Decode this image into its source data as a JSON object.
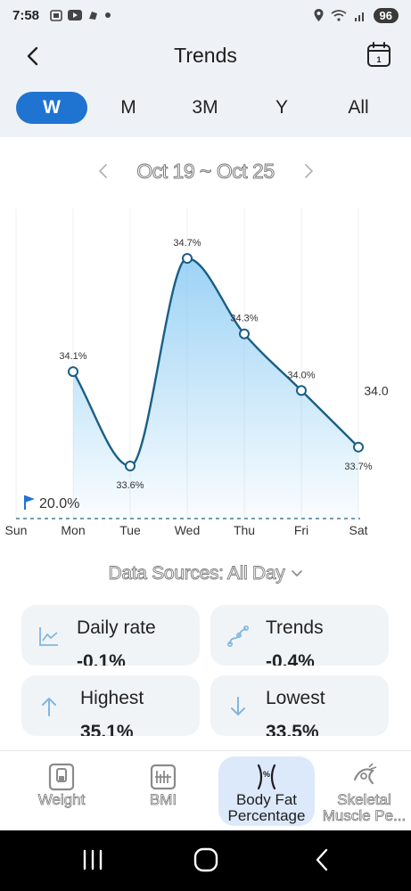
{
  "status_bar": {
    "time": "7:58",
    "battery": "96"
  },
  "app_bar": {
    "title": "Trends",
    "back_icon": "back-arrow-icon",
    "calendar_icon": "calendar-icon",
    "calendar_day": "1"
  },
  "periods": [
    {
      "label": "W",
      "active": true
    },
    {
      "label": "M",
      "active": false
    },
    {
      "label": "3M",
      "active": false
    },
    {
      "label": "Y",
      "active": false
    },
    {
      "label": "All",
      "active": false
    }
  ],
  "date_range": {
    "label": "Oct 19 ~ Oct 25"
  },
  "chart_data": {
    "type": "area",
    "categories": [
      "Sun",
      "Mon",
      "Tue",
      "Wed",
      "Thu",
      "Fri",
      "Sat"
    ],
    "series": [
      {
        "values": [
          null,
          34.1,
          33.6,
          34.7,
          34.3,
          34.0,
          33.7
        ]
      }
    ],
    "data_labels": [
      "",
      "34.1%",
      "33.6%",
      "34.7%",
      "34.3%",
      "34.0%",
      "33.7%"
    ],
    "target": {
      "value": 20.0,
      "label": "20.0%"
    },
    "reference_value": {
      "value": 34.0,
      "label": "34.0"
    },
    "line_color": "#1a5f86",
    "fill_color": "#7cc4f2",
    "target_color": "#1f74d1"
  },
  "data_sources": {
    "label": "Data Sources: All Day"
  },
  "stats": {
    "daily_rate": {
      "title": "Daily rate",
      "value": "-0.1%"
    },
    "trends": {
      "title": "Trends",
      "value": "-0.4%"
    },
    "highest": {
      "title": "Highest",
      "value": "35.1%"
    },
    "lowest": {
      "title": "Lowest",
      "value": "33.5%"
    }
  },
  "bottom_nav": [
    {
      "label": "Weight",
      "icon": "scale-icon",
      "active": false
    },
    {
      "label": "BMI",
      "icon": "bmi-icon",
      "active": false
    },
    {
      "label": "Body Fat\nPercentage",
      "icon": "body-fat-icon",
      "active": true
    },
    {
      "label": "Skeletal\nMuscle Pe...",
      "icon": "skeletal-muscle-icon",
      "active": false
    }
  ],
  "colors": {
    "accent": "#1f74d1",
    "background_header": "#eef2f6",
    "card": "#f1f4f7"
  }
}
